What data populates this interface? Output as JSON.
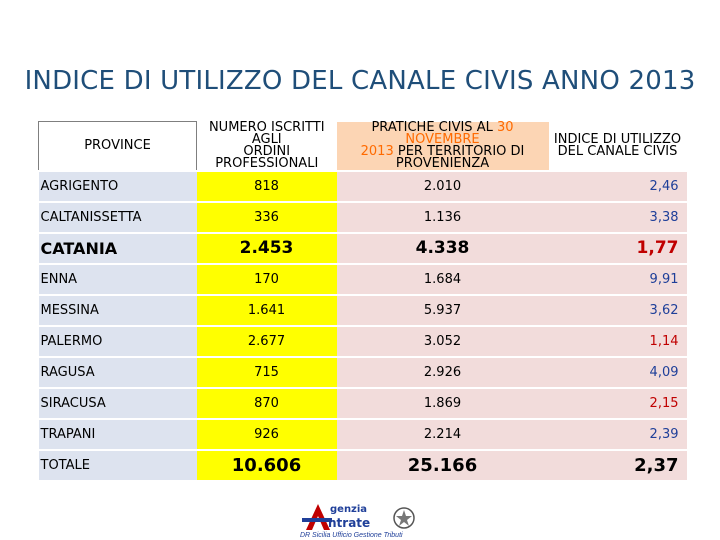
{
  "title": "INDICE DI UTILIZZO DEL CANALE CIVIS ANNO 2013",
  "headers": {
    "province": "PROVINCE",
    "iscritti_l1": "NUMERO ISCRITTI AGLI",
    "iscritti_l2": "ORDINI PROFESSIONALI",
    "pratiche_l1_a": "PRATICHE CIVIS AL ",
    "pratiche_l1_hl": "30 NOVEMBRE",
    "pratiche_l2_hl": "2013",
    "pratiche_l2_b": " PER TERRITORIO DI",
    "pratiche_l3": "PROVENIENZA",
    "indice_l1": "INDICE DI UTILIZZO",
    "indice_l2": "DEL CANALE CIVIS"
  },
  "rows": [
    {
      "province": "AGRIGENTO",
      "iscritti": "818",
      "pratiche": "2.010",
      "indice": "2,46"
    },
    {
      "province": "CALTANISSETTA",
      "iscritti": "336",
      "pratiche": "1.136",
      "indice": "3,38"
    },
    {
      "province": "CATANIA",
      "iscritti": "2.453",
      "pratiche": "4.338",
      "indice": "1,77"
    },
    {
      "province": "ENNA",
      "iscritti": "170",
      "pratiche": "1.684",
      "indice": "9,91"
    },
    {
      "province": "MESSINA",
      "iscritti": "1.641",
      "pratiche": "5.937",
      "indice": "3,62"
    },
    {
      "province": "PALERMO",
      "iscritti": "2.677",
      "pratiche": "3.052",
      "indice": "1,14"
    },
    {
      "province": "RAGUSA",
      "iscritti": "715",
      "pratiche": "2.926",
      "indice": "4,09"
    },
    {
      "province": "SIRACUSA",
      "iscritti": "870",
      "pratiche": "1.869",
      "indice": "2,15"
    },
    {
      "province": "TRAPANI",
      "iscritti": "926",
      "pratiche": "2.214",
      "indice": "2,39"
    },
    {
      "province": "TOTALE",
      "iscritti": "10.606",
      "pratiche": "25.166",
      "indice": "2,37"
    }
  ],
  "logo": {
    "line1": "genzia",
    "line2": "ntrate",
    "subtitle": "DR Sicilia Ufficio Gestione Tributi"
  },
  "colors": {
    "title": "#1f4e79",
    "province_bg": "#dde3ef",
    "iscritti_bg": "#ffff00",
    "pratiche_bg": "#f2dcdb",
    "pratiche_header_bg": "#fcd5b4",
    "highlight": "#ff6a00"
  }
}
